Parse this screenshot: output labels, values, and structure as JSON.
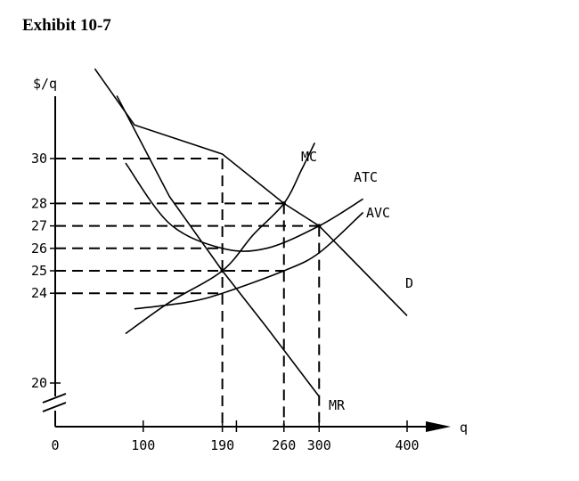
{
  "title": "Exhibit 10-7",
  "chart_data": {
    "type": "line",
    "ylabel": "$/q",
    "xlabel": "q",
    "x_ticks": [
      0,
      100,
      190,
      260,
      300,
      400
    ],
    "y_ticks": [
      20,
      24,
      25,
      26,
      27,
      28,
      30
    ],
    "axis_break": "y",
    "series": [
      {
        "name": "D",
        "points": [
          [
            45,
            34.0
          ],
          [
            90,
            31.5
          ],
          [
            190,
            30.2
          ],
          [
            260,
            28.0
          ],
          [
            300,
            27.0
          ],
          [
            400,
            23.0
          ]
        ]
      },
      {
        "name": "MR",
        "points": [
          [
            70,
            32.8
          ],
          [
            130,
            28.3
          ],
          [
            190,
            25.0
          ],
          [
            240,
            22.5
          ],
          [
            300,
            19.4
          ]
        ]
      },
      {
        "name": "MC",
        "points": [
          [
            80,
            22.2
          ],
          [
            130,
            23.6
          ],
          [
            190,
            25.0
          ],
          [
            225,
            26.6
          ],
          [
            260,
            28.0
          ],
          [
            280,
            29.5
          ],
          [
            295,
            30.7
          ]
        ]
      },
      {
        "name": "ATC",
        "points": [
          [
            80,
            29.8
          ],
          [
            130,
            27.1
          ],
          [
            190,
            26.0
          ],
          [
            240,
            26.0
          ],
          [
            300,
            27.0
          ],
          [
            350,
            28.2
          ]
        ]
      },
      {
        "name": "AVC",
        "points": [
          [
            90,
            23.3
          ],
          [
            150,
            23.6
          ],
          [
            190,
            24.0
          ],
          [
            260,
            25.0
          ],
          [
            300,
            25.8
          ],
          [
            350,
            27.6
          ]
        ]
      }
    ],
    "reference_lines": [
      {
        "x": 190,
        "y": 30
      },
      {
        "x": 260,
        "y": 28
      },
      {
        "x": 300,
        "y": 27
      },
      {
        "x": 190,
        "y": 26
      },
      {
        "x": 190,
        "y": 25
      },
      {
        "x": 260,
        "y": 25
      },
      {
        "x": 190,
        "y": 24
      }
    ]
  }
}
